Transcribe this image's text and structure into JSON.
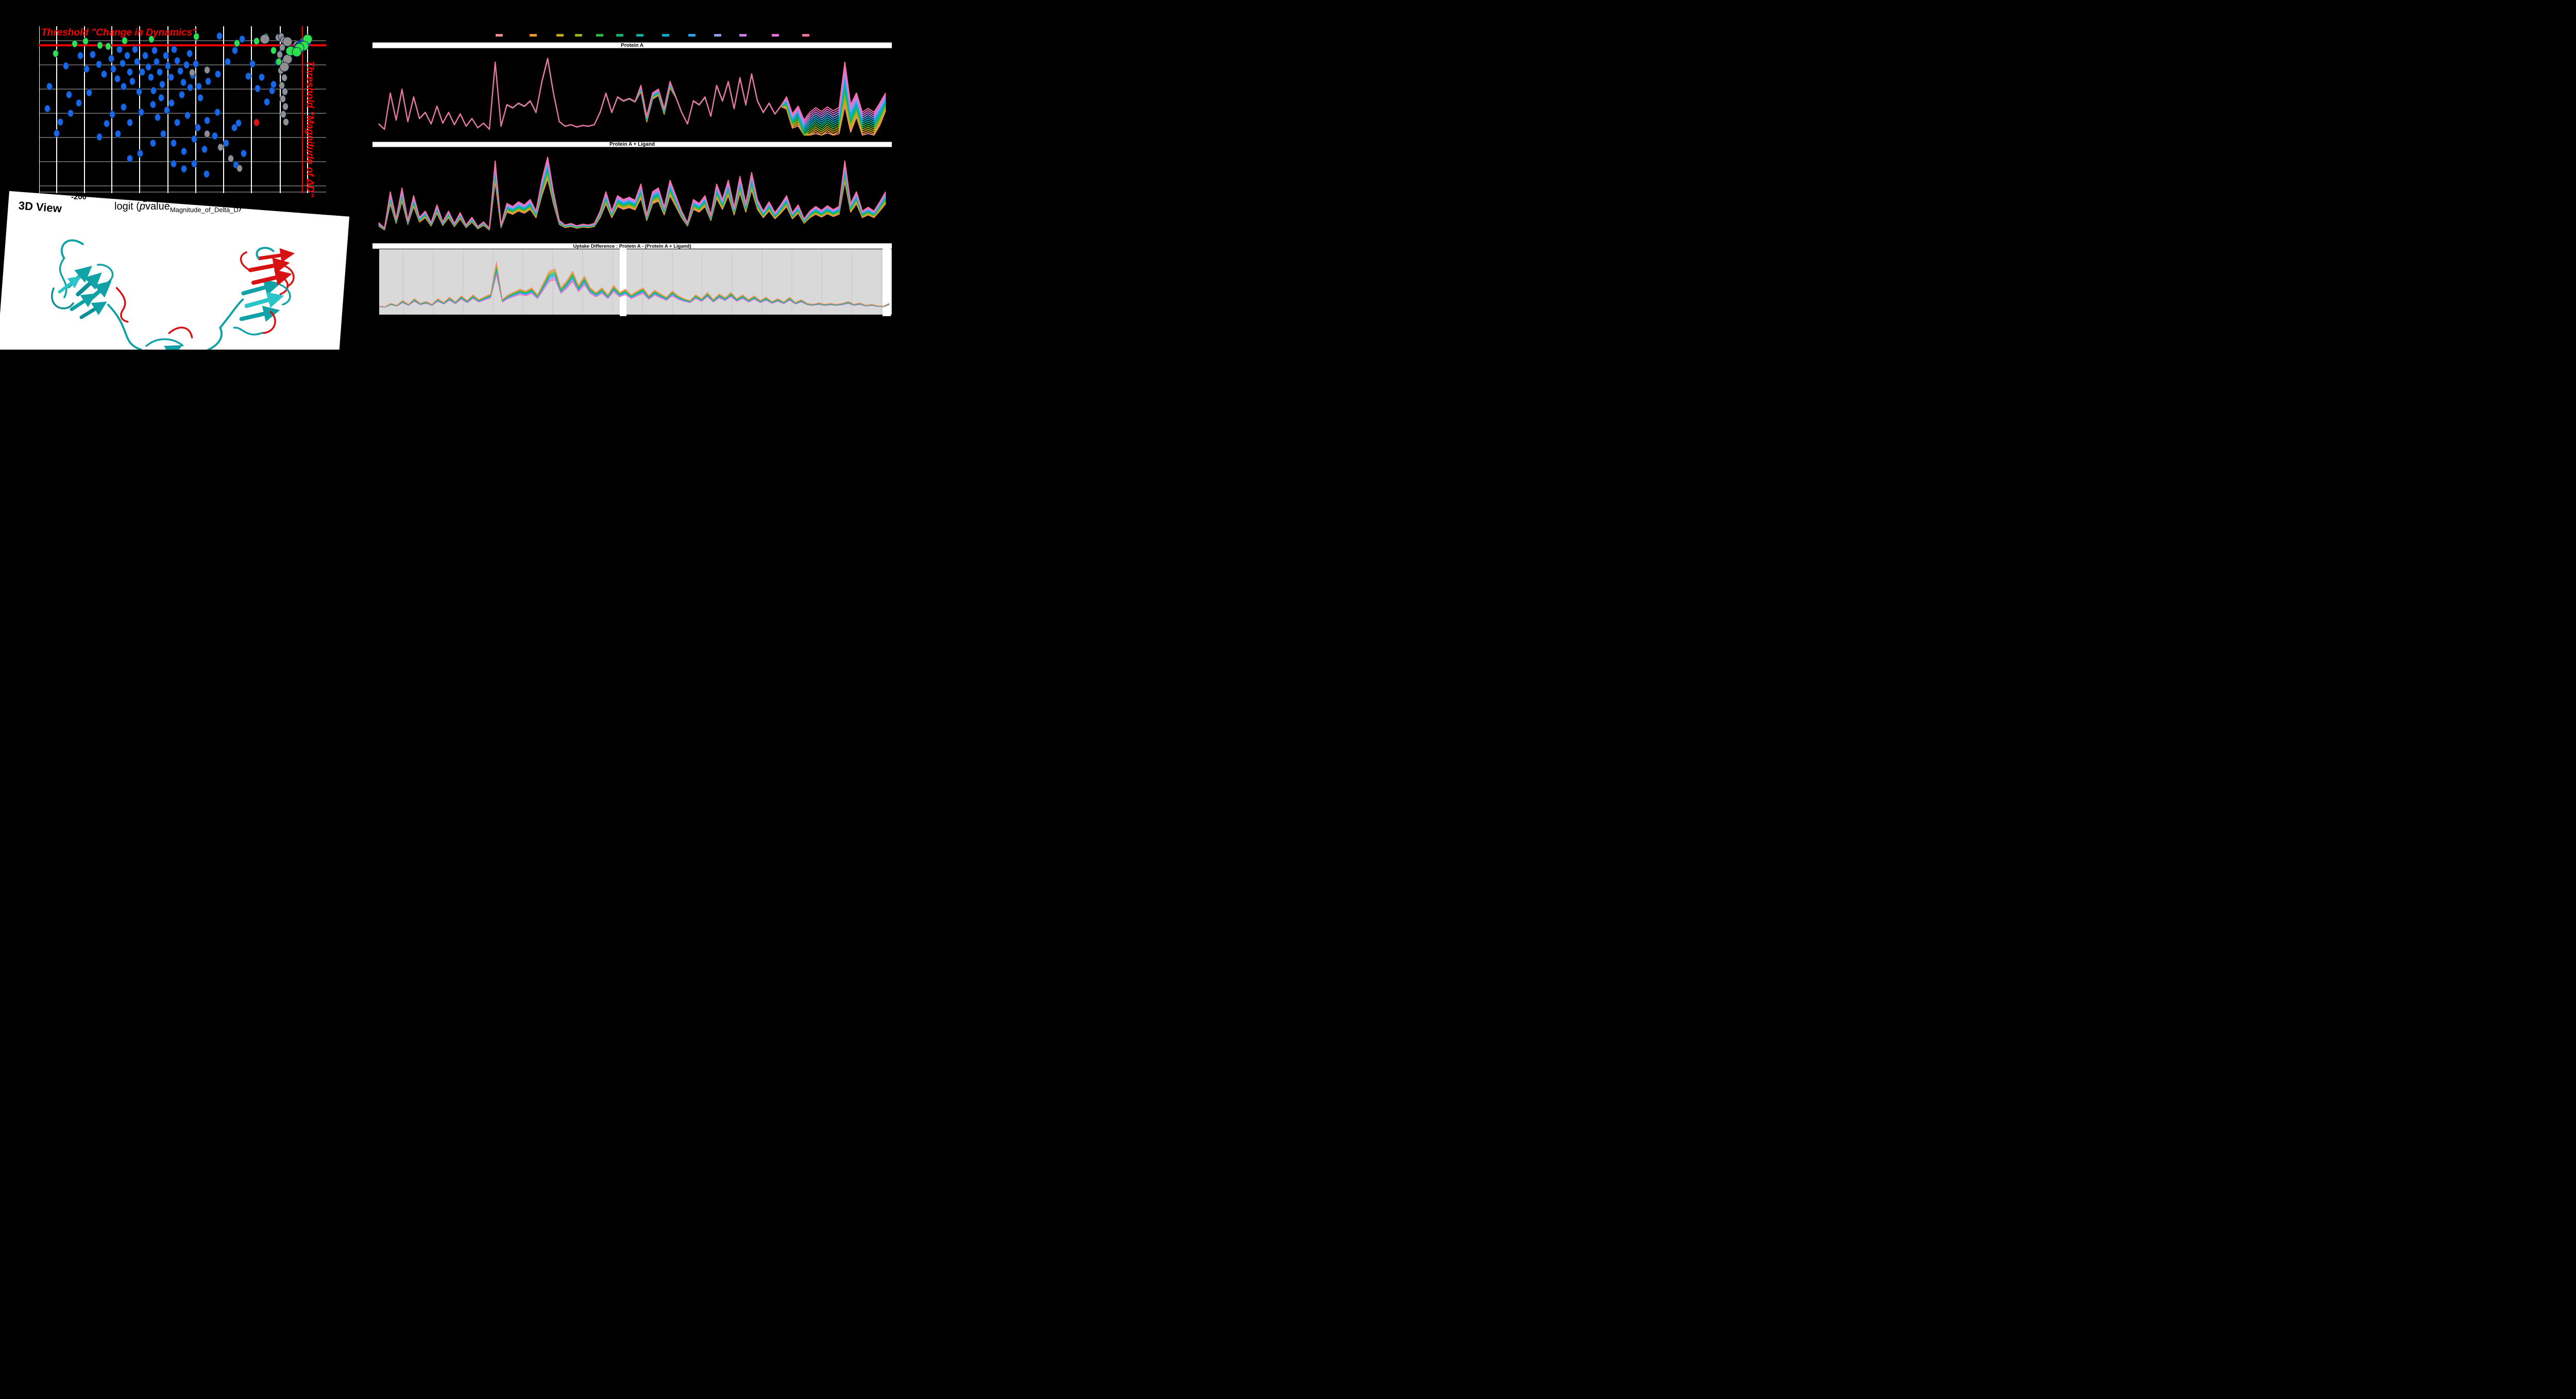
{
  "app": {
    "background": "#000000"
  },
  "volcano": {
    "threshold_hline_label": "Threshold \"Change in Dynamics\"",
    "threshold_vline_label": "Threshold \"Magnitude of ΔD\"",
    "threshold_color": "#FF0000",
    "x_ticks": [
      "-200",
      "-100"
    ],
    "x_axis_title": {
      "pre": "logit (",
      "p": "p",
      "value": "value",
      "sub": "Magnitude_of_Delta_D",
      "post": ")"
    },
    "point_colors": {
      "above_threshold_green": "#2EE04E",
      "default_blue": "#1668E8",
      "excluded_gray": "#8F8F8F",
      "flagged_red": "#E80E0E"
    }
  },
  "viewer3d": {
    "label": "3D View",
    "ribbon_main_color": "#11A2A8",
    "ribbon_light_color": "#2BC4C9",
    "ribbon_highlight_color": "#D61212"
  },
  "panels": {
    "p1": "Protein A",
    "p2": "Protein A + Ligand",
    "p3": "Uptake Difference : Protein A - (Protein A + Ligand)"
  },
  "chart_data": {
    "type": "line",
    "panel_titles": [
      "Protein A",
      "Protein A + Ligand",
      "Uptake Difference : Protein A - (Protein A + Ligand)"
    ],
    "n_points": 88,
    "x_axis": "peptide index (tick labels not visible)",
    "series_count": 13,
    "legend_labels_visible": false,
    "legend_colors": [
      "#F28C8C",
      "#E9992D",
      "#C8A818",
      "#9BB21C",
      "#33B73C",
      "#12B572",
      "#04B4A4",
      "#09AFCB",
      "#2BA2EF",
      "#8F9BEF",
      "#C57FEA",
      "#E96FD2",
      "#F4719F"
    ],
    "uptake_profile": [
      0.15,
      0.08,
      0.55,
      0.2,
      0.6,
      0.18,
      0.5,
      0.22,
      0.3,
      0.15,
      0.38,
      0.16,
      0.3,
      0.14,
      0.28,
      0.12,
      0.22,
      0.1,
      0.16,
      0.08,
      0.95,
      0.12,
      0.4,
      0.36,
      0.42,
      0.38,
      0.45,
      0.3,
      0.7,
      1.0,
      0.55,
      0.18,
      0.12,
      0.14,
      0.11,
      0.13,
      0.12,
      0.14,
      0.3,
      0.55,
      0.3,
      0.5,
      0.45,
      0.48,
      0.44,
      0.65,
      0.25,
      0.55,
      0.6,
      0.35,
      0.7,
      0.5,
      0.3,
      0.15,
      0.45,
      0.4,
      0.5,
      0.25,
      0.65,
      0.45,
      0.7,
      0.35,
      0.75,
      0.4,
      0.8,
      0.45,
      0.3,
      0.42,
      0.28,
      0.38,
      0.5,
      0.28,
      0.38,
      0.2,
      0.3,
      0.36,
      0.31,
      0.37,
      0.32,
      0.36,
      0.95,
      0.4,
      0.55,
      0.3,
      0.35,
      0.3,
      0.42,
      0.55
    ],
    "fan_spread_profile": [
      0,
      0,
      0,
      0,
      0,
      0,
      0,
      0,
      0,
      0,
      0,
      0,
      0,
      0,
      0,
      0,
      0,
      0,
      0,
      0,
      0,
      0,
      0,
      0,
      0,
      0,
      0,
      0,
      0,
      0,
      0,
      0,
      0,
      0,
      0,
      0,
      0,
      0,
      0,
      0,
      0,
      0,
      0,
      0,
      0,
      0.07,
      0.07,
      0.07,
      0.07,
      0.07,
      0.07,
      0,
      0,
      0,
      0,
      0,
      0,
      0,
      0,
      0,
      0,
      0,
      0,
      0,
      0,
      0,
      0,
      0,
      0,
      0,
      0.15,
      0.18,
      0.25,
      0.28,
      0.33,
      0.33,
      0.33,
      0.33,
      0.33,
      0.33,
      0.55,
      0.35,
      0.3,
      0.3,
      0.32,
      0.3,
      0.28,
      0.22
    ],
    "difference_profile": [
      0.06,
      0.05,
      0.12,
      0.08,
      0.18,
      0.1,
      0.22,
      0.12,
      0.16,
      0.1,
      0.22,
      0.14,
      0.25,
      0.15,
      0.28,
      0.18,
      0.3,
      0.2,
      0.26,
      0.32,
      1.0,
      0.2,
      0.3,
      0.36,
      0.42,
      0.38,
      0.45,
      0.3,
      0.55,
      0.8,
      0.85,
      0.45,
      0.6,
      0.8,
      0.5,
      0.7,
      0.45,
      0.35,
      0.45,
      0.3,
      0.5,
      0.35,
      0.42,
      0.3,
      0.38,
      0.45,
      0.28,
      0.4,
      0.32,
      0.25,
      0.38,
      0.28,
      0.22,
      0.18,
      0.3,
      0.22,
      0.35,
      0.2,
      0.32,
      0.24,
      0.35,
      0.22,
      0.3,
      0.2,
      0.28,
      0.18,
      0.25,
      0.16,
      0.22,
      0.15,
      0.25,
      0.14,
      0.2,
      0.12,
      0.1,
      0.13,
      0.1,
      0.12,
      0.1,
      0.12,
      0.16,
      0.1,
      0.13,
      0.08,
      0.1,
      0.07,
      0.06,
      0.12
    ],
    "series_rules": {
      "protein_a": "y=uptake*(1-0.018*(1-f))-fan*(1-f), f=series/12 (series nearly overlap, fan out on right)",
      "protein_a_ligand": "y=uptake*(0.72+0.28*f) (rainbow band, pink top / salmon bottom)",
      "difference": "y=difference*(0.72+0.28*(1-f)) (salmon top / pink bottom, thin lines on gray)"
    },
    "volcano_scatter": {
      "type": "scatter",
      "units": "plot-relative px, x:0-557 y:0-324 (most axis labels occluded by 3D-view card)",
      "points_green": [
        [
          32,
          53
        ],
        [
          69,
          34
        ],
        [
          90,
          29
        ],
        [
          118,
          37
        ],
        [
          134,
          39
        ],
        [
          166,
          28
        ],
        [
          218,
          25
        ],
        [
          305,
          20
        ],
        [
          384,
          33
        ],
        [
          422,
          29
        ],
        [
          440,
          21
        ],
        [
          455,
          47
        ],
        [
          465,
          69
        ]
      ],
      "points_green_large": [
        [
          521,
          25
        ],
        [
          514,
          38
        ],
        [
          505,
          42
        ],
        [
          488,
          48
        ],
        [
          500,
          50
        ]
      ],
      "points_blue": [
        [
          16,
          160
        ],
        [
          34,
          208
        ],
        [
          20,
          117
        ],
        [
          52,
          77
        ],
        [
          58,
          133
        ],
        [
          80,
          57
        ],
        [
          92,
          83
        ],
        [
          104,
          55
        ],
        [
          116,
          74
        ],
        [
          126,
          93
        ],
        [
          140,
          63
        ],
        [
          144,
          83
        ],
        [
          152,
          102
        ],
        [
          156,
          45
        ],
        [
          162,
          72
        ],
        [
          164,
          117
        ],
        [
          171,
          57
        ],
        [
          176,
          89
        ],
        [
          181,
          107
        ],
        [
          186,
          45
        ],
        [
          190,
          69
        ],
        [
          194,
          127
        ],
        [
          200,
          89
        ],
        [
          206,
          57
        ],
        [
          212,
          79
        ],
        [
          217,
          99
        ],
        [
          224,
          47
        ],
        [
          228,
          69
        ],
        [
          234,
          89
        ],
        [
          239,
          113
        ],
        [
          246,
          57
        ],
        [
          250,
          77
        ],
        [
          256,
          99
        ],
        [
          262,
          45
        ],
        [
          268,
          67
        ],
        [
          274,
          87
        ],
        [
          280,
          109
        ],
        [
          286,
          75
        ],
        [
          292,
          53
        ],
        [
          298,
          95
        ],
        [
          304,
          73
        ],
        [
          310,
          117
        ],
        [
          221,
          152
        ],
        [
          198,
          167
        ],
        [
          176,
          187
        ],
        [
          153,
          209
        ],
        [
          131,
          189
        ],
        [
          117,
          215
        ],
        [
          142,
          171
        ],
        [
          164,
          157
        ],
        [
          230,
          177
        ],
        [
          248,
          163
        ],
        [
          268,
          187
        ],
        [
          288,
          173
        ],
        [
          308,
          197
        ],
        [
          326,
          183
        ],
        [
          346,
          167
        ],
        [
          221,
          227
        ],
        [
          241,
          209
        ],
        [
          261,
          227
        ],
        [
          281,
          243
        ],
        [
          301,
          219
        ],
        [
          321,
          239
        ],
        [
          341,
          213
        ],
        [
          363,
          227
        ],
        [
          379,
          197
        ],
        [
          222,
          125
        ],
        [
          350,
          19
        ],
        [
          366,
          69
        ],
        [
          380,
          47
        ],
        [
          394,
          25
        ],
        [
          406,
          97
        ],
        [
          414,
          73
        ],
        [
          424,
          121
        ],
        [
          432,
          99
        ],
        [
          442,
          147
        ],
        [
          452,
          125
        ],
        [
          347,
          93
        ],
        [
          328,
          107
        ],
        [
          313,
          139
        ],
        [
          293,
          119
        ],
        [
          277,
          133
        ],
        [
          257,
          149
        ],
        [
          237,
          139
        ],
        [
          97,
          129
        ],
        [
          77,
          149
        ],
        [
          61,
          169
        ],
        [
          41,
          186
        ],
        [
          301,
          267
        ],
        [
          281,
          277
        ],
        [
          261,
          267
        ],
        [
          325,
          287
        ],
        [
          196,
          247
        ],
        [
          176,
          257
        ],
        [
          382,
          269
        ],
        [
          397,
          247
        ],
        [
          463,
          70
        ],
        [
          455,
          113
        ],
        [
          387,
          188
        ]
      ],
      "points_blue_large": [
        [
          507,
          37
        ],
        [
          510,
          41
        ],
        [
          503,
          42
        ],
        [
          519,
          31
        ],
        [
          514,
          34
        ]
      ],
      "points_gray": [
        [
          464,
          22
        ],
        [
          470,
          20
        ],
        [
          474,
          27
        ],
        [
          472,
          41
        ],
        [
          467,
          55
        ],
        [
          475,
          70
        ],
        [
          469,
          86
        ],
        [
          476,
          100
        ],
        [
          471,
          115
        ],
        [
          477,
          127
        ],
        [
          473,
          141
        ],
        [
          478,
          156
        ],
        [
          474,
          171
        ],
        [
          479,
          186
        ],
        [
          297,
          90
        ],
        [
          326,
          85
        ],
        [
          326,
          209
        ],
        [
          352,
          235
        ],
        [
          372,
          257
        ],
        [
          389,
          276
        ]
      ],
      "points_gray_large": [
        [
          514,
          31
        ],
        [
          502,
          37
        ],
        [
          482,
          30
        ],
        [
          482,
          64
        ],
        [
          476,
          79
        ],
        [
          438,
          25
        ]
      ],
      "points_red": [
        [
          422,
          187
        ]
      ]
    }
  }
}
